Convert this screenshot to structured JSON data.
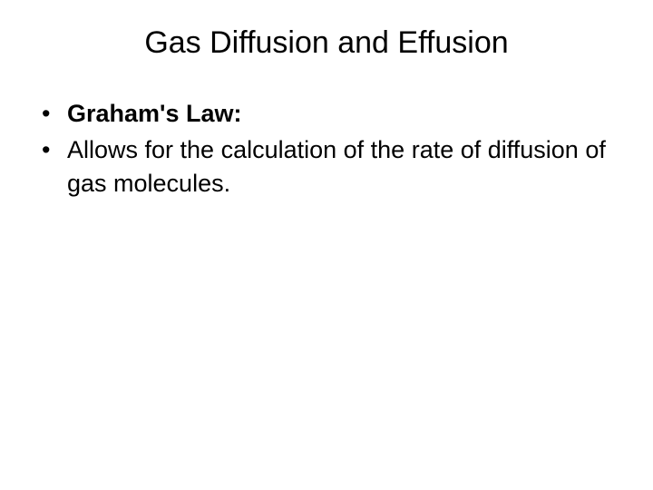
{
  "slide": {
    "title": "Gas Diffusion and Effusion",
    "bullets": [
      {
        "text": "Graham's Law:",
        "bold": true
      },
      {
        "text": "Allows for the calculation of the rate of diffusion of gas molecules.",
        "bold": false
      }
    ]
  },
  "style": {
    "background_color": "#ffffff",
    "text_color": "#000000",
    "title_fontsize": 34,
    "body_fontsize": 27,
    "font_family": "Arial"
  }
}
